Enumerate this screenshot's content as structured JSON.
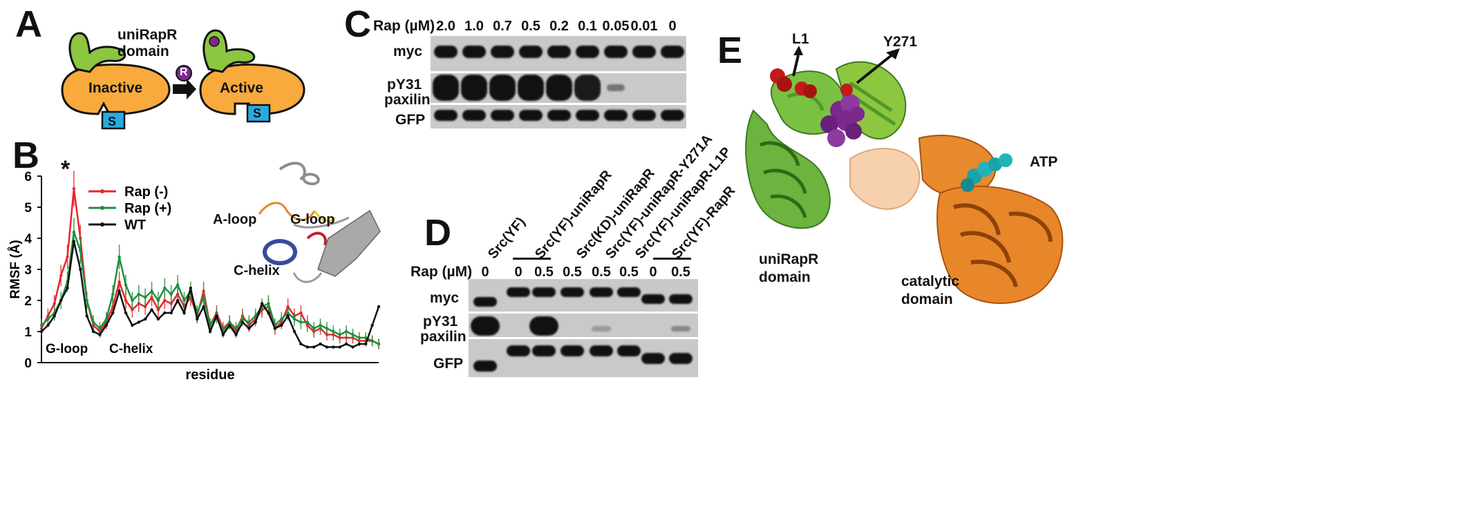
{
  "panels": {
    "a": {
      "letter": "A",
      "domain_label_line1": "uniRapR",
      "domain_label_line2": "domain",
      "inactive": "Inactive",
      "active": "Active",
      "substrate": "S",
      "rapamycin": "R"
    },
    "b": {
      "letter": "B",
      "star": "*"
    },
    "c": {
      "letter": "C",
      "conc_title": "Rap (µM)",
      "concentrations": [
        "2.0",
        "1.0",
        "0.7",
        "0.5",
        "0.2",
        "0.1",
        "0.05",
        "0.01",
        "0"
      ],
      "rows": {
        "myc": "myc",
        "py31_line1": "pY31",
        "py31_line2": "paxilin",
        "gfp": "GFP"
      }
    },
    "d": {
      "letter": "D",
      "conc_title": "Rap (µM)",
      "constructs": [
        "Src(YF)",
        "Src(YF)-uniRapR",
        "Src(KD)-uniRapR",
        "Src(YF)-uniRapR-Y271A",
        "Src(YF)-uniRapR-L1P",
        "Src(YF)-RapR"
      ],
      "concentrations": [
        "0",
        "0",
        "0.5",
        "0.5",
        "0.5",
        "0.5",
        "0",
        "0.5"
      ],
      "rows": {
        "myc": "myc",
        "py31_line1": "pY31",
        "py31_line2": "paxilin",
        "gfp": "GFP"
      }
    },
    "e": {
      "letter": "E",
      "l1": "L1",
      "y271": "Y271",
      "atp": "ATP",
      "unirapr_line1": "uniRapR",
      "unirapr_line2": "domain",
      "catalytic_line1": "catalytic",
      "catalytic_line2": "domain"
    }
  },
  "colors": {
    "rap_minus": "#e8262a",
    "rap_plus": "#1f8f3f",
    "wt": "#111111",
    "orange": "#f8aa3c",
    "green": "#8dc63f",
    "blue": "#27aae1",
    "purple": "#7b2a8c"
  },
  "chart_data": {
    "type": "line",
    "xlabel": "residue",
    "ylabel": "RMSF (Å)",
    "ylim": [
      0,
      6
    ],
    "yticks": [
      "0",
      "1",
      "2",
      "3",
      "4",
      "5",
      "6"
    ],
    "annotations": [
      "G-loop",
      "C-helix"
    ],
    "inset_labels": [
      "A-loop",
      "G-loop",
      "C-helix"
    ],
    "legend_position": "top-center",
    "x": [
      0,
      5,
      10,
      15,
      20,
      25,
      30,
      35,
      40,
      45,
      50,
      55,
      60,
      65,
      70,
      75,
      80,
      85,
      90,
      95,
      100,
      105,
      110,
      115,
      120,
      125,
      130,
      135,
      140,
      145,
      150,
      155,
      160,
      165,
      170,
      175,
      180,
      185,
      190,
      195,
      200,
      205,
      210,
      215,
      220,
      225,
      230,
      235,
      240,
      245,
      250,
      255,
      260
    ],
    "series": [
      {
        "name": "Rap (-)",
        "color": "#e8262a",
        "values": [
          1.1,
          1.5,
          1.9,
          2.8,
          3.4,
          5.6,
          4.0,
          2.0,
          1.2,
          1.0,
          1.3,
          1.8,
          2.6,
          2.0,
          1.7,
          1.9,
          1.8,
          2.1,
          1.7,
          2.0,
          1.9,
          2.2,
          1.8,
          2.1,
          1.5,
          2.3,
          1.2,
          1.6,
          1.1,
          1.3,
          1.0,
          1.5,
          1.2,
          1.4,
          1.7,
          1.8,
          1.1,
          1.3,
          1.8,
          1.5,
          1.6,
          1.2,
          1.0,
          1.1,
          0.9,
          0.9,
          0.8,
          0.8,
          0.8,
          0.7,
          0.7,
          0.7,
          0.6
        ]
      },
      {
        "name": "Rap (+)",
        "color": "#1f8f3f",
        "values": [
          1.2,
          1.4,
          1.6,
          2.0,
          2.6,
          4.2,
          3.6,
          2.0,
          1.3,
          1.1,
          1.4,
          2.2,
          3.4,
          2.5,
          2.0,
          2.2,
          2.1,
          2.3,
          2.0,
          2.4,
          2.2,
          2.5,
          2.0,
          2.3,
          1.6,
          2.1,
          1.2,
          1.5,
          1.0,
          1.3,
          1.1,
          1.4,
          1.3,
          1.5,
          1.8,
          1.9,
          1.2,
          1.4,
          1.6,
          1.4,
          1.3,
          1.3,
          1.1,
          1.2,
          1.1,
          1.0,
          0.9,
          1.0,
          0.9,
          0.8,
          0.8,
          0.7,
          0.6
        ]
      },
      {
        "name": "WT",
        "color": "#111111",
        "values": [
          1.0,
          1.2,
          1.5,
          2.0,
          2.4,
          3.9,
          3.0,
          1.5,
          1.0,
          0.9,
          1.2,
          1.6,
          2.3,
          1.6,
          1.2,
          1.3,
          1.4,
          1.7,
          1.4,
          1.6,
          1.6,
          2.0,
          1.6,
          2.4,
          1.4,
          1.8,
          1.0,
          1.5,
          0.9,
          1.2,
          0.9,
          1.3,
          1.1,
          1.3,
          1.9,
          1.6,
          1.1,
          1.2,
          1.5,
          1.0,
          0.6,
          0.5,
          0.5,
          0.6,
          0.5,
          0.5,
          0.5,
          0.6,
          0.5,
          0.6,
          0.6,
          1.2,
          1.8
        ]
      }
    ]
  }
}
